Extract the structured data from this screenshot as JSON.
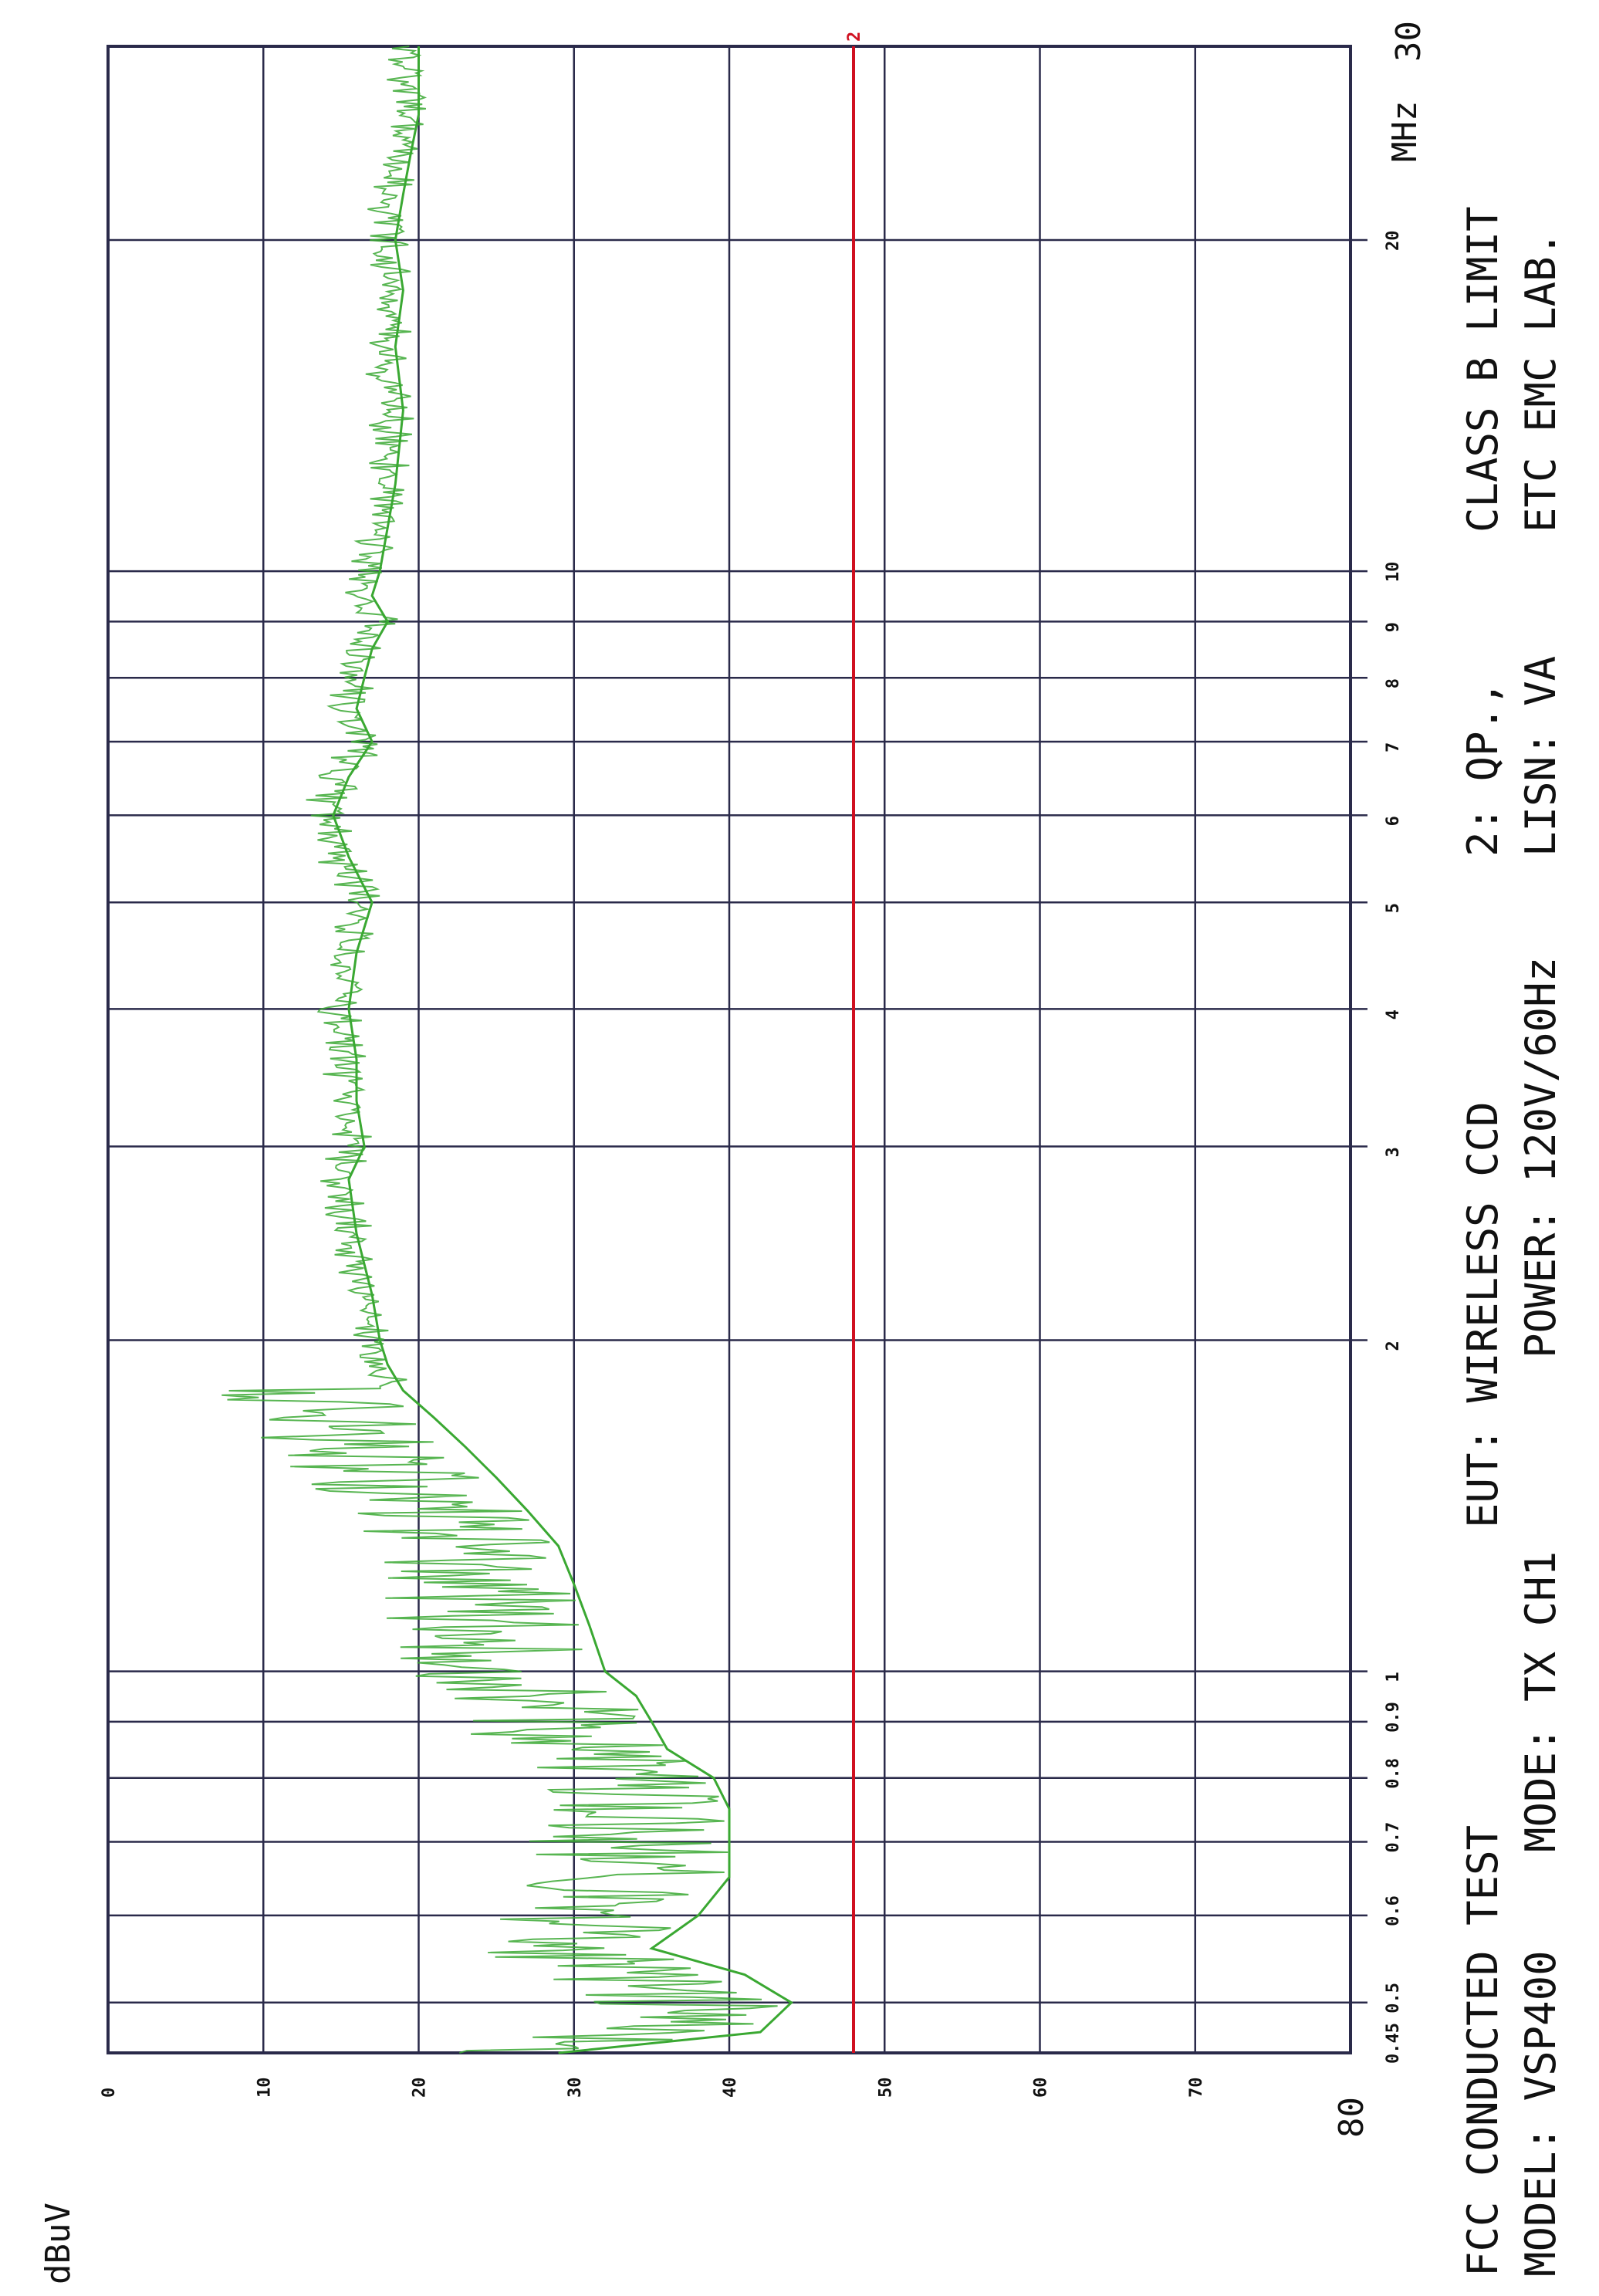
{
  "chart_data": {
    "type": "line",
    "title": "FCC CONDUCTED TEST",
    "ylabel": "dBuV",
    "xlabel": "MHz",
    "x_scale": "log",
    "xlim": [
      0.45,
      30
    ],
    "ylim": [
      0,
      80
    ],
    "y_ticks": [
      "0",
      "10",
      "20",
      "30",
      "40",
      "50",
      "60",
      "70",
      "80"
    ],
    "x_ticks": [
      {
        "value": 0.45,
        "label": "0.45"
      },
      {
        "value": 0.5,
        "label": "0.5"
      },
      {
        "value": 0.6,
        "label": "0.6"
      },
      {
        "value": 0.7,
        "label": "0.7"
      },
      {
        "value": 0.8,
        "label": "0.8"
      },
      {
        "value": 0.9,
        "label": "0.9"
      },
      {
        "value": 1,
        "label": "1"
      },
      {
        "value": 2,
        "label": "2"
      },
      {
        "value": 3,
        "label": "3"
      },
      {
        "value": 4,
        "label": "4"
      },
      {
        "value": 5,
        "label": "5"
      },
      {
        "value": 6,
        "label": "6"
      },
      {
        "value": 7,
        "label": "7"
      },
      {
        "value": 8,
        "label": "8"
      },
      {
        "value": 9,
        "label": "9"
      },
      {
        "value": 10,
        "label": "10"
      },
      {
        "value": 20,
        "label": "20"
      },
      {
        "value": 30,
        "label": "30"
      }
    ],
    "grid": true,
    "limit_line": {
      "marker": "2",
      "y": 48,
      "color": "#d01020"
    },
    "series": [
      {
        "color": "#3aa832",
        "x": [
          0.45,
          0.47,
          0.5,
          0.53,
          0.56,
          0.6,
          0.65,
          0.7,
          0.75,
          0.8,
          0.85,
          0.9,
          0.95,
          1.0,
          1.1,
          1.2,
          1.3,
          1.4,
          1.5,
          1.6,
          1.7,
          1.8,
          1.9,
          2.0,
          2.2,
          2.5,
          2.8,
          3.0,
          3.3,
          3.6,
          4.0,
          4.5,
          5.0,
          5.5,
          6.0,
          6.5,
          7.0,
          7.5,
          8.0,
          8.5,
          9.0,
          9.5,
          10,
          12,
          14,
          16,
          18,
          20,
          22,
          24,
          26,
          28,
          30
        ],
        "y": [
          29,
          42,
          44,
          41,
          35,
          38,
          40,
          40,
          40,
          39,
          36,
          35,
          34,
          32,
          31,
          30,
          29,
          27,
          25,
          23,
          21,
          19,
          18,
          17.5,
          17,
          16,
          15.5,
          16.5,
          16,
          16,
          15.5,
          16,
          17,
          15.5,
          14.5,
          15.5,
          17,
          16,
          16.5,
          17,
          18,
          17,
          17.5,
          18.5,
          19,
          18.5,
          19,
          18.5,
          19,
          19.5,
          20,
          20,
          20
        ]
      }
    ]
  },
  "info": {
    "line1": "FCC CONDUCTED TEST",
    "line2": "MODEL: VSP400",
    "mode": "MODE: TX CH1",
    "eut": "EUT: WIRELESS CCD",
    "power": "POWER: 120V/60Hz",
    "qp": "2: QP.,",
    "lisn": "LISN: VA",
    "limit": "CLASS B LIMIT",
    "lab": "ETC EMC LAB."
  }
}
